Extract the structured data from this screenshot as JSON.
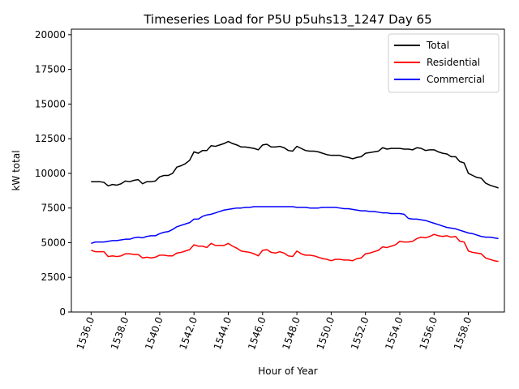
{
  "chart_data": {
    "type": "line",
    "title": "Timeseries Load for P5U p5uhs13_1247  Day 65",
    "xlabel": "Hour of Year",
    "ylabel": "kW total",
    "xlim": [
      1534.85,
      1560.1
    ],
    "ylim": [
      0,
      20400
    ],
    "xticks": [
      1536,
      1538,
      1540,
      1542,
      1544,
      1546,
      1548,
      1550,
      1552,
      1554,
      1556,
      1558
    ],
    "xtick_labels": [
      "1536.0",
      "1538.0",
      "1540.0",
      "1542.0",
      "1544.0",
      "1546.0",
      "1548.0",
      "1550.0",
      "1552.0",
      "1554.0",
      "1556.0",
      "1558.0"
    ],
    "yticks": [
      0,
      2500,
      5000,
      7500,
      10000,
      12500,
      15000,
      17500,
      20000
    ],
    "ytick_labels": [
      "0",
      "2500",
      "5000",
      "7500",
      "10000",
      "12500",
      "15000",
      "17500",
      "20000"
    ],
    "legend_position": "top-right",
    "grid": false,
    "x_start": 1536,
    "x_step": 0.25,
    "series": [
      {
        "name": "Total",
        "color": "#000000",
        "values": [
          9400,
          9400,
          9400,
          9350,
          9100,
          9200,
          9150,
          9250,
          9450,
          9400,
          9500,
          9550,
          9250,
          9400,
          9400,
          9450,
          9750,
          9850,
          9850,
          10000,
          10450,
          10550,
          10700,
          10950,
          11550,
          11450,
          11650,
          11650,
          12000,
          11950,
          12050,
          12150,
          12300,
          12150,
          12050,
          11900,
          11900,
          11850,
          11800,
          11700,
          12050,
          12100,
          11900,
          11900,
          11950,
          11850,
          11650,
          11600,
          11950,
          11800,
          11650,
          11600,
          11600,
          11550,
          11450,
          11350,
          11300,
          11300,
          11300,
          11200,
          11150,
          11050,
          11150,
          11200,
          11450,
          11500,
          11550,
          11600,
          11850,
          11750,
          11800,
          11800,
          11800,
          11750,
          11750,
          11700,
          11850,
          11800,
          11650,
          11700,
          11700,
          11550,
          11450,
          11400,
          11200,
          11200,
          10850,
          10750,
          10000,
          9850,
          9700,
          9650,
          9300,
          9150,
          9050,
          8950
        ]
      },
      {
        "name": "Residential",
        "color": "#ff0000",
        "values": [
          4450,
          4350,
          4350,
          4350,
          4000,
          4050,
          4000,
          4050,
          4200,
          4200,
          4150,
          4150,
          3900,
          3950,
          3900,
          3950,
          4100,
          4100,
          4050,
          4050,
          4250,
          4300,
          4400,
          4500,
          4850,
          4750,
          4750,
          4650,
          4950,
          4800,
          4800,
          4800,
          4950,
          4750,
          4600,
          4400,
          4350,
          4300,
          4200,
          4050,
          4450,
          4500,
          4300,
          4250,
          4350,
          4250,
          4050,
          4000,
          4400,
          4200,
          4100,
          4100,
          4050,
          3950,
          3850,
          3800,
          3700,
          3800,
          3800,
          3750,
          3750,
          3700,
          3850,
          3900,
          4200,
          4250,
          4350,
          4450,
          4700,
          4650,
          4750,
          4850,
          5100,
          5050,
          5050,
          5100,
          5300,
          5400,
          5350,
          5450,
          5600,
          5500,
          5450,
          5500,
          5400,
          5450,
          5100,
          5050,
          4400,
          4300,
          4250,
          4200,
          3900,
          3800,
          3700,
          3650
        ]
      },
      {
        "name": "Commercial",
        "color": "#0000ff",
        "values": [
          4950,
          5050,
          5050,
          5050,
          5100,
          5150,
          5150,
          5200,
          5250,
          5250,
          5350,
          5400,
          5350,
          5450,
          5500,
          5500,
          5650,
          5750,
          5800,
          5950,
          6150,
          6250,
          6350,
          6450,
          6700,
          6700,
          6900,
          7000,
          7050,
          7150,
          7250,
          7350,
          7400,
          7450,
          7500,
          7500,
          7550,
          7550,
          7600,
          7600,
          7600,
          7600,
          7600,
          7600,
          7600,
          7600,
          7600,
          7600,
          7550,
          7550,
          7550,
          7500,
          7500,
          7500,
          7550,
          7550,
          7550,
          7550,
          7500,
          7450,
          7450,
          7400,
          7350,
          7300,
          7300,
          7250,
          7250,
          7200,
          7150,
          7150,
          7100,
          7100,
          7100,
          7050,
          6750,
          6700,
          6700,
          6650,
          6600,
          6500,
          6400,
          6300,
          6200,
          6100,
          6050,
          6000,
          5900,
          5800,
          5700,
          5650,
          5550,
          5450,
          5400,
          5400,
          5350,
          5300
        ]
      }
    ]
  }
}
